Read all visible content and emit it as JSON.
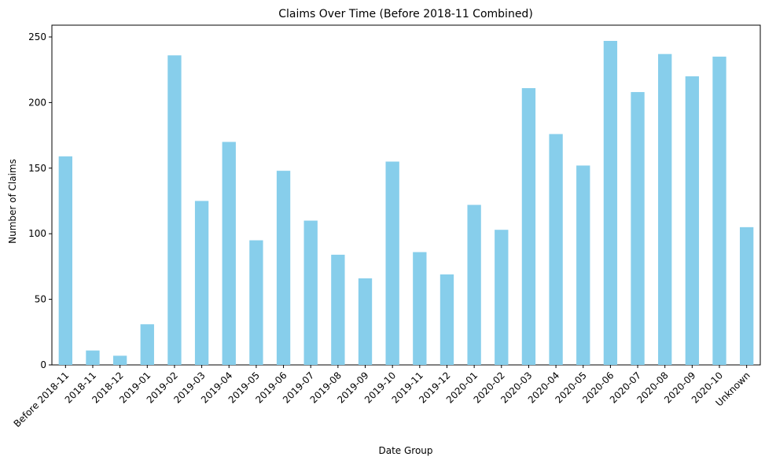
{
  "chart_data": {
    "type": "bar",
    "title": "Claims Over Time (Before 2018-11 Combined)",
    "xlabel": "Date Group",
    "ylabel": "Number of Claims",
    "categories": [
      "Before 2018-11",
      "2018-11",
      "2018-12",
      "2019-01",
      "2019-02",
      "2019-03",
      "2019-04",
      "2019-05",
      "2019-06",
      "2019-07",
      "2019-08",
      "2019-09",
      "2019-10",
      "2019-11",
      "2019-12",
      "2020-01",
      "2020-02",
      "2020-03",
      "2020-04",
      "2020-05",
      "2020-06",
      "2020-07",
      "2020-08",
      "2020-09",
      "2020-10",
      "Unknown"
    ],
    "values": [
      159,
      11,
      7,
      31,
      236,
      125,
      170,
      95,
      148,
      110,
      84,
      66,
      155,
      86,
      69,
      122,
      103,
      211,
      176,
      152,
      247,
      208,
      237,
      220,
      235,
      105
    ],
    "ylim": [
      0,
      259
    ],
    "yticks": [
      0,
      50,
      100,
      150,
      200,
      250
    ],
    "grid": false,
    "legend": "none",
    "bar_color": "#87CEEB"
  }
}
